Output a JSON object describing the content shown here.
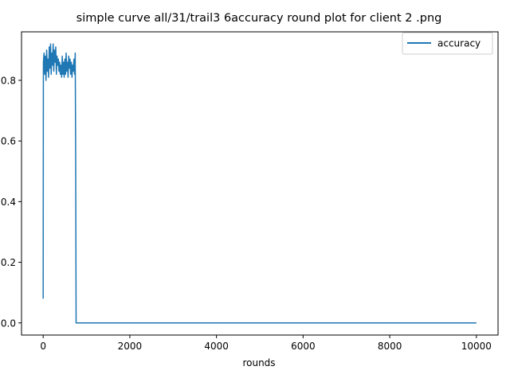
{
  "chart_data": {
    "type": "line",
    "title": "simple curve all/31/trail3 6accuracy round plot for client 2 .png",
    "xlabel": "rounds",
    "ylabel": "",
    "xlim": [
      -500,
      10500
    ],
    "ylim": [
      -0.04,
      0.96
    ],
    "xticks": [
      0,
      2000,
      4000,
      6000,
      8000,
      10000
    ],
    "xtick_labels": [
      "0",
      "2000",
      "4000",
      "6000",
      "8000",
      "10000"
    ],
    "yticks": [
      0.0,
      0.2,
      0.4,
      0.6,
      0.8
    ],
    "ytick_labels": [
      "0.0",
      "0.2",
      "0.4",
      "0.6",
      "0.8"
    ],
    "grid": false,
    "legend_position": "top-right",
    "colors": {
      "series": "#1f77b4",
      "axes": "#000000",
      "legend_border": "#cccccc"
    },
    "series": [
      {
        "name": "accuracy",
        "x": [
          0,
          5,
          20,
          35,
          50,
          65,
          80,
          95,
          110,
          125,
          140,
          155,
          170,
          185,
          200,
          215,
          230,
          245,
          260,
          275,
          290,
          305,
          320,
          335,
          350,
          365,
          380,
          395,
          410,
          425,
          440,
          455,
          470,
          485,
          500,
          515,
          530,
          545,
          560,
          575,
          590,
          605,
          620,
          635,
          650,
          665,
          680,
          695,
          710,
          725,
          740,
          750,
          760,
          10000
        ],
        "y": [
          0.08,
          0.86,
          0.89,
          0.82,
          0.88,
          0.8,
          0.9,
          0.83,
          0.87,
          0.81,
          0.91,
          0.84,
          0.92,
          0.82,
          0.89,
          0.85,
          0.92,
          0.83,
          0.9,
          0.86,
          0.91,
          0.82,
          0.88,
          0.85,
          0.87,
          0.83,
          0.86,
          0.82,
          0.85,
          0.81,
          0.88,
          0.82,
          0.86,
          0.81,
          0.87,
          0.82,
          0.89,
          0.83,
          0.86,
          0.81,
          0.88,
          0.84,
          0.87,
          0.82,
          0.86,
          0.81,
          0.85,
          0.83,
          0.87,
          0.82,
          0.89,
          0.55,
          0.0,
          0.0
        ]
      }
    ]
  }
}
